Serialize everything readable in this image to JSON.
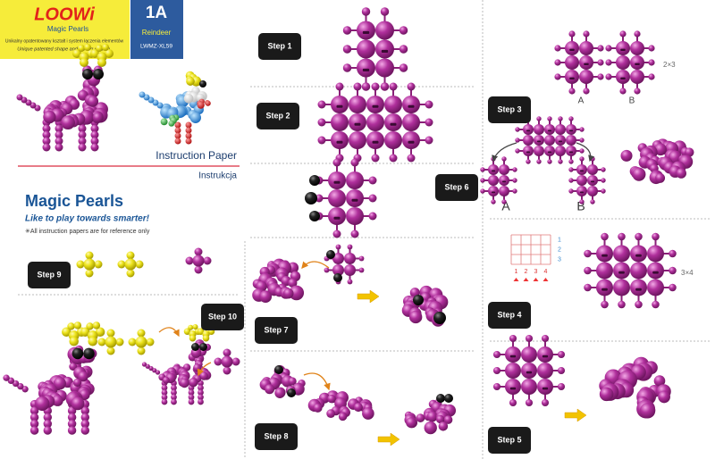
{
  "header": {
    "logo": "LOOWi",
    "brand": "Magic Pearls",
    "tagline_pl": "Unikalny opatentowany kształt i system łączenia elementów",
    "tagline_en": "Unique patented shape and joining system.",
    "code": "1A",
    "model_name": "Reindeer",
    "model_code": "LWMZ-XL59"
  },
  "intro": {
    "instruction_en": "Instruction Paper",
    "instruction_pl": "Instrukcja",
    "title": "Magic Pearls",
    "slogan": "Like to play towards smarter!",
    "note": "✳All instruction papers are for reference only"
  },
  "steps": [
    "Step 1",
    "Step 2",
    "Step 6",
    "Step 9",
    "Step 10",
    "Step 7",
    "Step 8",
    "Step 3",
    "Step 4",
    "Step 5"
  ],
  "step3": {
    "part_a": "A",
    "part_b": "B",
    "size": "2×3",
    "join_a": "A",
    "join_b": "B"
  },
  "step4": {
    "columns": [
      "1",
      "2",
      "3",
      "4"
    ],
    "rows": [
      "1",
      "2",
      "3"
    ],
    "size": "3×4"
  }
}
